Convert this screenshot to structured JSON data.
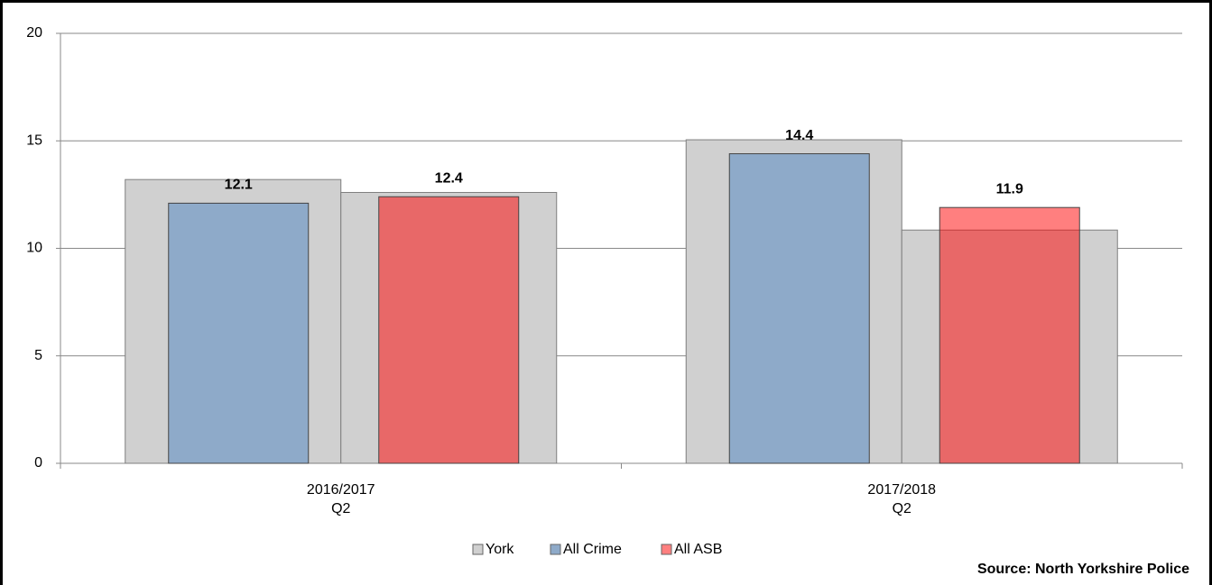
{
  "chart_data": {
    "type": "overlap-bar",
    "categories": [
      [
        "2016/2017",
        "Q2"
      ],
      [
        "2017/2018",
        "Q2"
      ]
    ],
    "series": [
      {
        "name": "York",
        "color": "#d0d0d0",
        "values": [
          [
            13.2,
            12.6
          ],
          [
            15.05,
            10.85
          ]
        ]
      },
      {
        "name": "All Crime",
        "color": "#8eaac9",
        "values": [
          12.1,
          14.4
        ]
      },
      {
        "name": "All ASB",
        "color": "#ff0000",
        "values": [
          12.4,
          11.9
        ]
      }
    ],
    "ylim": [
      0,
      20
    ],
    "yticks": [
      0,
      5,
      10,
      15,
      20
    ],
    "grid": true,
    "source": "Source: North Yorkshire Police"
  }
}
